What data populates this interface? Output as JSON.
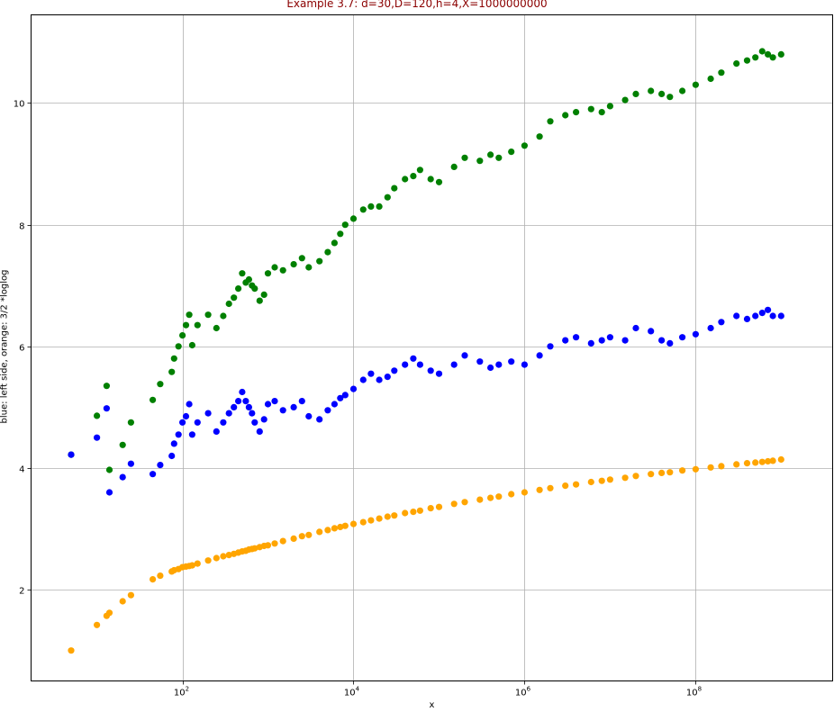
{
  "chart_data": {
    "type": "scatter",
    "title": "Example 3.7: d=30,D=120,h=4,X=1000000000",
    "xlabel": "x",
    "ylabel": "blue: left side, orange: 3/2 *loglog",
    "xscale": "log",
    "xlim": [
      1.7,
      4000000000.0
    ],
    "ylim": [
      0.5,
      11.45
    ],
    "grid": true,
    "x_ticks": [
      {
        "value": 100,
        "base": "10",
        "exp": "2"
      },
      {
        "value": 10000,
        "base": "10",
        "exp": "4"
      },
      {
        "value": 1000000,
        "base": "10",
        "exp": "6"
      },
      {
        "value": 100000000,
        "base": "10",
        "exp": "8"
      }
    ],
    "y_ticks": [
      2,
      4,
      6,
      8,
      10
    ],
    "series": [
      {
        "color": "#008000",
        "points": [
          [
            5,
            4.22
          ],
          [
            10,
            4.86
          ],
          [
            13,
            5.35
          ],
          [
            14,
            3.97
          ],
          [
            20,
            4.38
          ],
          [
            25,
            4.75
          ],
          [
            45,
            5.12
          ],
          [
            55,
            5.38
          ],
          [
            75,
            5.58
          ],
          [
            80,
            5.8
          ],
          [
            90,
            6.0
          ],
          [
            100,
            6.18
          ],
          [
            110,
            6.35
          ],
          [
            120,
            6.52
          ],
          [
            130,
            6.02
          ],
          [
            150,
            6.35
          ],
          [
            200,
            6.52
          ],
          [
            250,
            6.3
          ],
          [
            300,
            6.5
          ],
          [
            350,
            6.7
          ],
          [
            400,
            6.8
          ],
          [
            450,
            6.95
          ],
          [
            500,
            7.2
          ],
          [
            550,
            7.05
          ],
          [
            600,
            7.1
          ],
          [
            650,
            7.0
          ],
          [
            700,
            6.95
          ],
          [
            800,
            6.75
          ],
          [
            900,
            6.85
          ],
          [
            1000,
            7.2
          ],
          [
            1200,
            7.3
          ],
          [
            1500,
            7.25
          ],
          [
            2000,
            7.35
          ],
          [
            2500,
            7.45
          ],
          [
            3000,
            7.3
          ],
          [
            4000,
            7.4
          ],
          [
            5000,
            7.55
          ],
          [
            6000,
            7.7
          ],
          [
            7000,
            7.85
          ],
          [
            8000,
            8.0
          ],
          [
            10000,
            8.1
          ],
          [
            13000,
            8.25
          ],
          [
            16000,
            8.3
          ],
          [
            20000,
            8.3
          ],
          [
            25000,
            8.45
          ],
          [
            30000,
            8.6
          ],
          [
            40000,
            8.75
          ],
          [
            50000,
            8.8
          ],
          [
            60000,
            8.9
          ],
          [
            80000,
            8.75
          ],
          [
            100000,
            8.7
          ],
          [
            150000,
            8.95
          ],
          [
            200000,
            9.1
          ],
          [
            300000,
            9.05
          ],
          [
            400000,
            9.15
          ],
          [
            500000,
            9.1
          ],
          [
            700000,
            9.2
          ],
          [
            1000000,
            9.3
          ],
          [
            1500000,
            9.45
          ],
          [
            2000000,
            9.7
          ],
          [
            3000000,
            9.8
          ],
          [
            4000000,
            9.85
          ],
          [
            6000000,
            9.9
          ],
          [
            8000000,
            9.85
          ],
          [
            10000000,
            9.95
          ],
          [
            15000000,
            10.05
          ],
          [
            20000000,
            10.15
          ],
          [
            30000000,
            10.2
          ],
          [
            40000000,
            10.15
          ],
          [
            50000000,
            10.1
          ],
          [
            70000000,
            10.2
          ],
          [
            100000000,
            10.3
          ],
          [
            150000000,
            10.4
          ],
          [
            200000000,
            10.5
          ],
          [
            300000000,
            10.65
          ],
          [
            400000000,
            10.7
          ],
          [
            500000000,
            10.75
          ],
          [
            600000000,
            10.85
          ],
          [
            700000000,
            10.8
          ],
          [
            800000000,
            10.75
          ],
          [
            1000000000,
            10.8
          ]
        ]
      },
      {
        "color": "#0000ff",
        "points": [
          [
            5,
            4.22
          ],
          [
            10,
            4.5
          ],
          [
            13,
            4.98
          ],
          [
            14,
            3.6
          ],
          [
            20,
            3.85
          ],
          [
            25,
            4.07
          ],
          [
            45,
            3.9
          ],
          [
            55,
            4.05
          ],
          [
            75,
            4.2
          ],
          [
            80,
            4.4
          ],
          [
            90,
            4.55
          ],
          [
            100,
            4.75
          ],
          [
            110,
            4.85
          ],
          [
            120,
            5.05
          ],
          [
            130,
            4.55
          ],
          [
            150,
            4.75
          ],
          [
            200,
            4.9
          ],
          [
            250,
            4.6
          ],
          [
            300,
            4.75
          ],
          [
            350,
            4.9
          ],
          [
            400,
            5.0
          ],
          [
            450,
            5.1
          ],
          [
            500,
            5.25
          ],
          [
            550,
            5.1
          ],
          [
            600,
            5.0
          ],
          [
            650,
            4.9
          ],
          [
            700,
            4.75
          ],
          [
            800,
            4.6
          ],
          [
            900,
            4.8
          ],
          [
            1000,
            5.05
          ],
          [
            1200,
            5.1
          ],
          [
            1500,
            4.95
          ],
          [
            2000,
            5.0
          ],
          [
            2500,
            5.1
          ],
          [
            3000,
            4.85
          ],
          [
            4000,
            4.8
          ],
          [
            5000,
            4.95
          ],
          [
            6000,
            5.05
          ],
          [
            7000,
            5.15
          ],
          [
            8000,
            5.2
          ],
          [
            10000,
            5.3
          ],
          [
            13000,
            5.45
          ],
          [
            16000,
            5.55
          ],
          [
            20000,
            5.45
          ],
          [
            25000,
            5.5
          ],
          [
            30000,
            5.6
          ],
          [
            40000,
            5.7
          ],
          [
            50000,
            5.8
          ],
          [
            60000,
            5.7
          ],
          [
            80000,
            5.6
          ],
          [
            100000,
            5.55
          ],
          [
            150000,
            5.7
          ],
          [
            200000,
            5.85
          ],
          [
            300000,
            5.75
          ],
          [
            400000,
            5.65
          ],
          [
            500000,
            5.7
          ],
          [
            700000,
            5.75
          ],
          [
            1000000,
            5.7
          ],
          [
            1500000,
            5.85
          ],
          [
            2000000,
            6.0
          ],
          [
            3000000,
            6.1
          ],
          [
            4000000,
            6.15
          ],
          [
            6000000,
            6.05
          ],
          [
            8000000,
            6.1
          ],
          [
            10000000,
            6.15
          ],
          [
            15000000,
            6.1
          ],
          [
            20000000,
            6.3
          ],
          [
            30000000,
            6.25
          ],
          [
            40000000,
            6.1
          ],
          [
            50000000,
            6.05
          ],
          [
            70000000,
            6.15
          ],
          [
            100000000,
            6.2
          ],
          [
            150000000,
            6.3
          ],
          [
            200000000,
            6.4
          ],
          [
            300000000,
            6.5
          ],
          [
            400000000,
            6.45
          ],
          [
            500000000,
            6.5
          ],
          [
            600000000,
            6.55
          ],
          [
            700000000,
            6.6
          ],
          [
            800000000,
            6.5
          ],
          [
            1000000000,
            6.5
          ]
        ]
      },
      {
        "color": "#ffa500",
        "points": [
          [
            5,
            1.0
          ],
          [
            10,
            1.42
          ],
          [
            13,
            1.57
          ],
          [
            14,
            1.62
          ],
          [
            20,
            1.81
          ],
          [
            25,
            1.91
          ],
          [
            45,
            2.17
          ],
          [
            55,
            2.23
          ],
          [
            75,
            2.3
          ],
          [
            80,
            2.32
          ],
          [
            90,
            2.34
          ],
          [
            100,
            2.37
          ],
          [
            110,
            2.38
          ],
          [
            120,
            2.39
          ],
          [
            130,
            2.4
          ],
          [
            150,
            2.43
          ],
          [
            200,
            2.48
          ],
          [
            250,
            2.52
          ],
          [
            300,
            2.55
          ],
          [
            350,
            2.57
          ],
          [
            400,
            2.59
          ],
          [
            450,
            2.61
          ],
          [
            500,
            2.63
          ],
          [
            550,
            2.64
          ],
          [
            600,
            2.66
          ],
          [
            650,
            2.67
          ],
          [
            700,
            2.68
          ],
          [
            800,
            2.7
          ],
          [
            900,
            2.72
          ],
          [
            1000,
            2.73
          ],
          [
            1200,
            2.76
          ],
          [
            1500,
            2.8
          ],
          [
            2000,
            2.84
          ],
          [
            2500,
            2.88
          ],
          [
            3000,
            2.9
          ],
          [
            4000,
            2.95
          ],
          [
            5000,
            2.98
          ],
          [
            6000,
            3.01
          ],
          [
            7000,
            3.03
          ],
          [
            8000,
            3.05
          ],
          [
            10000,
            3.08
          ],
          [
            13000,
            3.11
          ],
          [
            16000,
            3.14
          ],
          [
            20000,
            3.17
          ],
          [
            25000,
            3.2
          ],
          [
            30000,
            3.22
          ],
          [
            40000,
            3.26
          ],
          [
            50000,
            3.28
          ],
          [
            60000,
            3.3
          ],
          [
            80000,
            3.34
          ],
          [
            100000,
            3.36
          ],
          [
            150000,
            3.41
          ],
          [
            200000,
            3.44
          ],
          [
            300000,
            3.48
          ],
          [
            400000,
            3.51
          ],
          [
            500000,
            3.53
          ],
          [
            700000,
            3.57
          ],
          [
            1000000,
            3.6
          ],
          [
            1500000,
            3.64
          ],
          [
            2000000,
            3.67
          ],
          [
            3000000,
            3.71
          ],
          [
            4000000,
            3.73
          ],
          [
            6000000,
            3.77
          ],
          [
            8000000,
            3.79
          ],
          [
            10000000,
            3.81
          ],
          [
            15000000,
            3.84
          ],
          [
            20000000,
            3.87
          ],
          [
            30000000,
            3.9
          ],
          [
            40000000,
            3.92
          ],
          [
            50000000,
            3.93
          ],
          [
            70000000,
            3.96
          ],
          [
            100000000,
            3.98
          ],
          [
            150000000,
            4.01
          ],
          [
            200000000,
            4.03
          ],
          [
            300000000,
            4.06
          ],
          [
            400000000,
            4.08
          ],
          [
            500000000,
            4.09
          ],
          [
            600000000,
            4.1
          ],
          [
            700000000,
            4.11
          ],
          [
            800000000,
            4.12
          ],
          [
            1000000000,
            4.14
          ]
        ]
      }
    ]
  }
}
